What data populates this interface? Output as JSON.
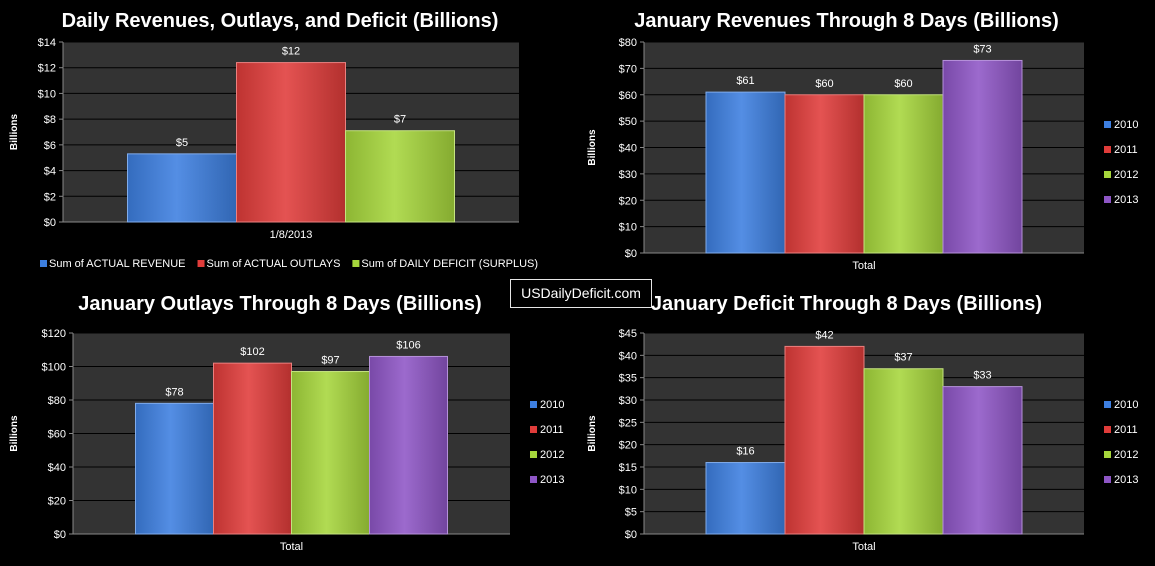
{
  "brand": "USDailyDeficit.com",
  "colors": {
    "plot_bg": "#333333",
    "grid": "#000000",
    "series": [
      "#3d7fe0",
      "#e03c3a",
      "#a6d63c",
      "#8e56c6"
    ]
  },
  "chart_data": [
    {
      "type": "bar",
      "title": "Daily Revenues, Outlays, and Deficit (Billions)",
      "ylabel": "Billions",
      "xlabel": "",
      "categories": [
        "1/8/2013"
      ],
      "series": [
        {
          "name": "Sum of ACTUAL REVENUE",
          "values": [
            5.3
          ]
        },
        {
          "name": "Sum of ACTUAL OUTLAYS",
          "values": [
            12.4
          ]
        },
        {
          "name": "Sum of DAILY DEFICIT (SURPLUS)",
          "values": [
            7.1
          ]
        }
      ],
      "data_labels": [
        "$5",
        "$12",
        "$7"
      ],
      "ylim": [
        0,
        14
      ],
      "ytick_step": 2,
      "yticks": [
        "$0",
        "$2",
        "$4",
        "$6",
        "$8",
        "$10",
        "$12",
        "$14"
      ],
      "grid": true,
      "legend": "bottom"
    },
    {
      "type": "bar",
      "title": "January Revenues Through 8 Days (Billions)",
      "ylabel": "Billions",
      "xlabel": "",
      "categories": [
        "Total"
      ],
      "series": [
        {
          "name": "2010",
          "values": [
            61
          ]
        },
        {
          "name": "2011",
          "values": [
            60
          ]
        },
        {
          "name": "2012",
          "values": [
            60
          ]
        },
        {
          "name": "2013",
          "values": [
            73
          ]
        }
      ],
      "data_labels": [
        "$61",
        "$60",
        "$60",
        "$73"
      ],
      "ylim": [
        0,
        80
      ],
      "ytick_step": 10,
      "yticks": [
        "$0",
        "$10",
        "$20",
        "$30",
        "$40",
        "$50",
        "$60",
        "$70",
        "$80"
      ],
      "grid": true,
      "legend": "right"
    },
    {
      "type": "bar",
      "title": "January Outlays Through 8 Days (Billions)",
      "ylabel": "Billions",
      "xlabel": "",
      "categories": [
        "Total"
      ],
      "series": [
        {
          "name": "2010",
          "values": [
            78
          ]
        },
        {
          "name": "2011",
          "values": [
            102
          ]
        },
        {
          "name": "2012",
          "values": [
            97
          ]
        },
        {
          "name": "2013",
          "values": [
            106
          ]
        }
      ],
      "data_labels": [
        "$78",
        "$102",
        "$97",
        "$106"
      ],
      "ylim": [
        0,
        120
      ],
      "ytick_step": 20,
      "yticks": [
        "$0",
        "$20",
        "$40",
        "$60",
        "$80",
        "$100",
        "$120"
      ],
      "grid": true,
      "legend": "right"
    },
    {
      "type": "bar",
      "title": "January Deficit Through 8 Days (Billions)",
      "ylabel": "Billions",
      "xlabel": "",
      "categories": [
        "Total"
      ],
      "series": [
        {
          "name": "2010",
          "values": [
            16
          ]
        },
        {
          "name": "2011",
          "values": [
            42
          ]
        },
        {
          "name": "2012",
          "values": [
            37
          ]
        },
        {
          "name": "2013",
          "values": [
            33
          ]
        }
      ],
      "data_labels": [
        "$16",
        "$42",
        "$37",
        "$33"
      ],
      "ylim": [
        0,
        45
      ],
      "ytick_step": 5,
      "yticks": [
        "$0",
        "$5",
        "$10",
        "$15",
        "$20",
        "$25",
        "$30",
        "$35",
        "$40",
        "$45"
      ],
      "grid": true,
      "legend": "right"
    }
  ]
}
